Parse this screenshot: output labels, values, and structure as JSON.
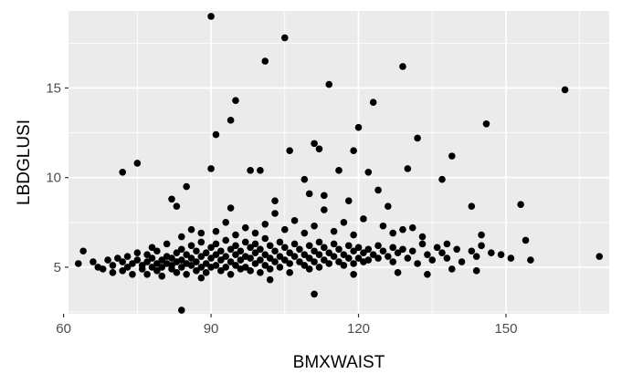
{
  "chart_data": {
    "type": "scatter",
    "title": "",
    "xlabel": "BMXWAIST",
    "ylabel": "LBDGLUSI",
    "xlim": [
      61,
      171
    ],
    "ylim": [
      2.4,
      19.3
    ],
    "x_ticks": [
      60,
      90,
      120,
      150
    ],
    "y_ticks": [
      5,
      10,
      15
    ],
    "grid": true,
    "legend": "none",
    "colors": {
      "panel": "#ebebeb",
      "grid_major": "#ffffff",
      "point": "#000000",
      "tick_text": "#4d4d4d",
      "tick_mark": "#333333"
    },
    "points": [
      {
        "x": 63,
        "y": 5.2
      },
      {
        "x": 64,
        "y": 5.9
      },
      {
        "x": 66,
        "y": 5.3
      },
      {
        "x": 67,
        "y": 5.0
      },
      {
        "x": 68,
        "y": 4.9
      },
      {
        "x": 69,
        "y": 5.4
      },
      {
        "x": 70,
        "y": 5.1
      },
      {
        "x": 70,
        "y": 4.7
      },
      {
        "x": 71,
        "y": 5.5
      },
      {
        "x": 72,
        "y": 4.8
      },
      {
        "x": 72,
        "y": 5.3
      },
      {
        "x": 73,
        "y": 5.6
      },
      {
        "x": 73,
        "y": 5.0
      },
      {
        "x": 74,
        "y": 5.2
      },
      {
        "x": 74,
        "y": 4.6
      },
      {
        "x": 75,
        "y": 5.4
      },
      {
        "x": 75,
        "y": 5.8
      },
      {
        "x": 76,
        "y": 5.1
      },
      {
        "x": 76,
        "y": 4.9
      },
      {
        "x": 77,
        "y": 5.3
      },
      {
        "x": 77,
        "y": 5.7
      },
      {
        "x": 77,
        "y": 4.6
      },
      {
        "x": 78,
        "y": 5.0
      },
      {
        "x": 78,
        "y": 5.5
      },
      {
        "x": 78,
        "y": 6.1
      },
      {
        "x": 79,
        "y": 5.2
      },
      {
        "x": 79,
        "y": 4.8
      },
      {
        "x": 79,
        "y": 5.9
      },
      {
        "x": 80,
        "y": 5.4
      },
      {
        "x": 80,
        "y": 5.0
      },
      {
        "x": 80,
        "y": 4.5
      },
      {
        "x": 81,
        "y": 5.6
      },
      {
        "x": 81,
        "y": 5.2
      },
      {
        "x": 81,
        "y": 6.3
      },
      {
        "x": 82,
        "y": 4.9
      },
      {
        "x": 82,
        "y": 5.5
      },
      {
        "x": 82,
        "y": 5.1
      },
      {
        "x": 83,
        "y": 5.8
      },
      {
        "x": 83,
        "y": 5.3
      },
      {
        "x": 83,
        "y": 4.7
      },
      {
        "x": 84,
        "y": 6.0
      },
      {
        "x": 84,
        "y": 5.4
      },
      {
        "x": 84,
        "y": 5.0
      },
      {
        "x": 85,
        "y": 5.7
      },
      {
        "x": 85,
        "y": 5.2
      },
      {
        "x": 85,
        "y": 4.6
      },
      {
        "x": 86,
        "y": 6.2
      },
      {
        "x": 86,
        "y": 5.5
      },
      {
        "x": 86,
        "y": 5.1
      },
      {
        "x": 87,
        "y": 5.9
      },
      {
        "x": 87,
        "y": 5.3
      },
      {
        "x": 87,
        "y": 4.8
      },
      {
        "x": 88,
        "y": 6.4
      },
      {
        "x": 88,
        "y": 5.6
      },
      {
        "x": 88,
        "y": 5.0
      },
      {
        "x": 89,
        "y": 5.8
      },
      {
        "x": 89,
        "y": 5.2
      },
      {
        "x": 89,
        "y": 4.7
      },
      {
        "x": 90,
        "y": 6.1
      },
      {
        "x": 90,
        "y": 5.5
      },
      {
        "x": 90,
        "y": 5.0
      },
      {
        "x": 91,
        "y": 6.3
      },
      {
        "x": 91,
        "y": 5.7
      },
      {
        "x": 91,
        "y": 5.1
      },
      {
        "x": 92,
        "y": 5.9
      },
      {
        "x": 92,
        "y": 5.4
      },
      {
        "x": 92,
        "y": 4.8
      },
      {
        "x": 93,
        "y": 6.5
      },
      {
        "x": 93,
        "y": 5.6
      },
      {
        "x": 93,
        "y": 5.0
      },
      {
        "x": 94,
        "y": 6.0
      },
      {
        "x": 94,
        "y": 5.3
      },
      {
        "x": 94,
        "y": 4.6
      },
      {
        "x": 95,
        "y": 6.2
      },
      {
        "x": 95,
        "y": 5.7
      },
      {
        "x": 95,
        "y": 5.1
      },
      {
        "x": 96,
        "y": 5.9
      },
      {
        "x": 96,
        "y": 5.4
      },
      {
        "x": 96,
        "y": 4.9
      },
      {
        "x": 97,
        "y": 6.4
      },
      {
        "x": 97,
        "y": 5.6
      },
      {
        "x": 97,
        "y": 5.0
      },
      {
        "x": 98,
        "y": 6.1
      },
      {
        "x": 98,
        "y": 5.5
      },
      {
        "x": 98,
        "y": 4.8
      },
      {
        "x": 99,
        "y": 6.3
      },
      {
        "x": 99,
        "y": 5.8
      },
      {
        "x": 99,
        "y": 5.2
      },
      {
        "x": 100,
        "y": 6.0
      },
      {
        "x": 100,
        "y": 5.4
      },
      {
        "x": 100,
        "y": 4.7
      },
      {
        "x": 101,
        "y": 6.6
      },
      {
        "x": 101,
        "y": 5.7
      },
      {
        "x": 101,
        "y": 5.1
      },
      {
        "x": 102,
        "y": 6.2
      },
      {
        "x": 102,
        "y": 5.5
      },
      {
        "x": 102,
        "y": 4.9
      },
      {
        "x": 103,
        "y": 5.9
      },
      {
        "x": 103,
        "y": 5.3
      },
      {
        "x": 104,
        "y": 6.4
      },
      {
        "x": 104,
        "y": 5.6
      },
      {
        "x": 104,
        "y": 5.0
      },
      {
        "x": 105,
        "y": 6.1
      },
      {
        "x": 105,
        "y": 5.4
      },
      {
        "x": 106,
        "y": 5.8
      },
      {
        "x": 106,
        "y": 5.2
      },
      {
        "x": 106,
        "y": 4.7
      },
      {
        "x": 107,
        "y": 6.3
      },
      {
        "x": 107,
        "y": 5.6
      },
      {
        "x": 108,
        "y": 6.0
      },
      {
        "x": 108,
        "y": 5.3
      },
      {
        "x": 109,
        "y": 5.7
      },
      {
        "x": 109,
        "y": 5.1
      },
      {
        "x": 110,
        "y": 6.2
      },
      {
        "x": 110,
        "y": 5.5
      },
      {
        "x": 110,
        "y": 4.9
      },
      {
        "x": 111,
        "y": 5.9
      },
      {
        "x": 111,
        "y": 5.3
      },
      {
        "x": 112,
        "y": 6.4
      },
      {
        "x": 112,
        "y": 5.7
      },
      {
        "x": 112,
        "y": 5.0
      },
      {
        "x": 113,
        "y": 6.1
      },
      {
        "x": 113,
        "y": 5.4
      },
      {
        "x": 114,
        "y": 5.8
      },
      {
        "x": 114,
        "y": 5.2
      },
      {
        "x": 115,
        "y": 6.3
      },
      {
        "x": 115,
        "y": 5.6
      },
      {
        "x": 116,
        "y": 6.0
      },
      {
        "x": 116,
        "y": 5.3
      },
      {
        "x": 117,
        "y": 5.7
      },
      {
        "x": 117,
        "y": 5.1
      },
      {
        "x": 118,
        "y": 6.2
      },
      {
        "x": 118,
        "y": 5.5
      },
      {
        "x": 119,
        "y": 5.9
      },
      {
        "x": 119,
        "y": 5.2
      },
      {
        "x": 120,
        "y": 6.1
      },
      {
        "x": 120,
        "y": 5.5
      },
      {
        "x": 121,
        "y": 5.8
      },
      {
        "x": 121,
        "y": 5.3
      },
      {
        "x": 122,
        "y": 6.0
      },
      {
        "x": 122,
        "y": 5.4
      },
      {
        "x": 123,
        "y": 5.7
      },
      {
        "x": 124,
        "y": 6.2
      },
      {
        "x": 124,
        "y": 5.5
      },
      {
        "x": 125,
        "y": 5.9
      },
      {
        "x": 126,
        "y": 5.6
      },
      {
        "x": 127,
        "y": 6.1
      },
      {
        "x": 127,
        "y": 5.3
      },
      {
        "x": 128,
        "y": 5.8
      },
      {
        "x": 129,
        "y": 6.0
      },
      {
        "x": 130,
        "y": 5.5
      },
      {
        "x": 131,
        "y": 5.9
      },
      {
        "x": 132,
        "y": 5.2
      },
      {
        "x": 133,
        "y": 6.3
      },
      {
        "x": 134,
        "y": 5.7
      },
      {
        "x": 135,
        "y": 5.4
      },
      {
        "x": 136,
        "y": 6.1
      },
      {
        "x": 137,
        "y": 5.8
      },
      {
        "x": 138,
        "y": 5.5
      },
      {
        "x": 140,
        "y": 6.0
      },
      {
        "x": 141,
        "y": 5.3
      },
      {
        "x": 143,
        "y": 5.9
      },
      {
        "x": 144,
        "y": 5.6
      },
      {
        "x": 145,
        "y": 6.2
      },
      {
        "x": 147,
        "y": 5.8
      },
      {
        "x": 149,
        "y": 5.7
      },
      {
        "x": 151,
        "y": 5.5
      },
      {
        "x": 155,
        "y": 5.4
      },
      {
        "x": 169,
        "y": 5.6
      },
      {
        "x": 91,
        "y": 7.0
      },
      {
        "x": 93,
        "y": 7.5
      },
      {
        "x": 95,
        "y": 6.8
      },
      {
        "x": 97,
        "y": 7.2
      },
      {
        "x": 99,
        "y": 6.9
      },
      {
        "x": 101,
        "y": 7.4
      },
      {
        "x": 103,
        "y": 8.0
      },
      {
        "x": 105,
        "y": 7.1
      },
      {
        "x": 107,
        "y": 7.6
      },
      {
        "x": 109,
        "y": 6.9
      },
      {
        "x": 111,
        "y": 7.3
      },
      {
        "x": 113,
        "y": 8.2
      },
      {
        "x": 115,
        "y": 7.0
      },
      {
        "x": 117,
        "y": 7.5
      },
      {
        "x": 119,
        "y": 6.8
      },
      {
        "x": 121,
        "y": 7.7
      },
      {
        "x": 86,
        "y": 7.1
      },
      {
        "x": 88,
        "y": 6.9
      },
      {
        "x": 84,
        "y": 6.7
      },
      {
        "x": 125,
        "y": 7.3
      },
      {
        "x": 72,
        "y": 10.3
      },
      {
        "x": 75,
        "y": 10.8
      },
      {
        "x": 82,
        "y": 8.8
      },
      {
        "x": 83,
        "y": 8.4
      },
      {
        "x": 85,
        "y": 9.5
      },
      {
        "x": 90,
        "y": 10.5
      },
      {
        "x": 91,
        "y": 12.4
      },
      {
        "x": 94,
        "y": 13.2
      },
      {
        "x": 95,
        "y": 14.3
      },
      {
        "x": 90,
        "y": 19.0
      },
      {
        "x": 94,
        "y": 8.3
      },
      {
        "x": 98,
        "y": 10.4
      },
      {
        "x": 100,
        "y": 10.4
      },
      {
        "x": 101,
        "y": 16.5
      },
      {
        "x": 103,
        "y": 8.7
      },
      {
        "x": 105,
        "y": 17.8
      },
      {
        "x": 106,
        "y": 11.5
      },
      {
        "x": 109,
        "y": 9.9
      },
      {
        "x": 110,
        "y": 9.1
      },
      {
        "x": 111,
        "y": 11.9
      },
      {
        "x": 112,
        "y": 11.6
      },
      {
        "x": 113,
        "y": 9.0
      },
      {
        "x": 114,
        "y": 15.2
      },
      {
        "x": 116,
        "y": 10.4
      },
      {
        "x": 118,
        "y": 8.7
      },
      {
        "x": 119,
        "y": 11.5
      },
      {
        "x": 120,
        "y": 12.8
      },
      {
        "x": 122,
        "y": 10.3
      },
      {
        "x": 123,
        "y": 14.2
      },
      {
        "x": 124,
        "y": 9.3
      },
      {
        "x": 126,
        "y": 8.4
      },
      {
        "x": 129,
        "y": 16.2
      },
      {
        "x": 130,
        "y": 10.5
      },
      {
        "x": 132,
        "y": 12.2
      },
      {
        "x": 137,
        "y": 9.9
      },
      {
        "x": 139,
        "y": 11.2
      },
      {
        "x": 143,
        "y": 8.4
      },
      {
        "x": 146,
        "y": 13.0
      },
      {
        "x": 153,
        "y": 8.5
      },
      {
        "x": 162,
        "y": 14.9
      },
      {
        "x": 84,
        "y": 2.6
      },
      {
        "x": 111,
        "y": 3.5
      },
      {
        "x": 102,
        "y": 4.3
      },
      {
        "x": 80,
        "y": 4.5
      },
      {
        "x": 88,
        "y": 4.4
      },
      {
        "x": 119,
        "y": 4.6
      },
      {
        "x": 128,
        "y": 4.7
      },
      {
        "x": 134,
        "y": 4.6
      },
      {
        "x": 139,
        "y": 4.9
      },
      {
        "x": 144,
        "y": 4.8
      },
      {
        "x": 154,
        "y": 6.5
      },
      {
        "x": 145,
        "y": 6.8
      },
      {
        "x": 138,
        "y": 6.3
      },
      {
        "x": 133,
        "y": 6.7
      },
      {
        "x": 129,
        "y": 7.1
      },
      {
        "x": 127,
        "y": 6.9
      },
      {
        "x": 131,
        "y": 7.2
      }
    ]
  }
}
